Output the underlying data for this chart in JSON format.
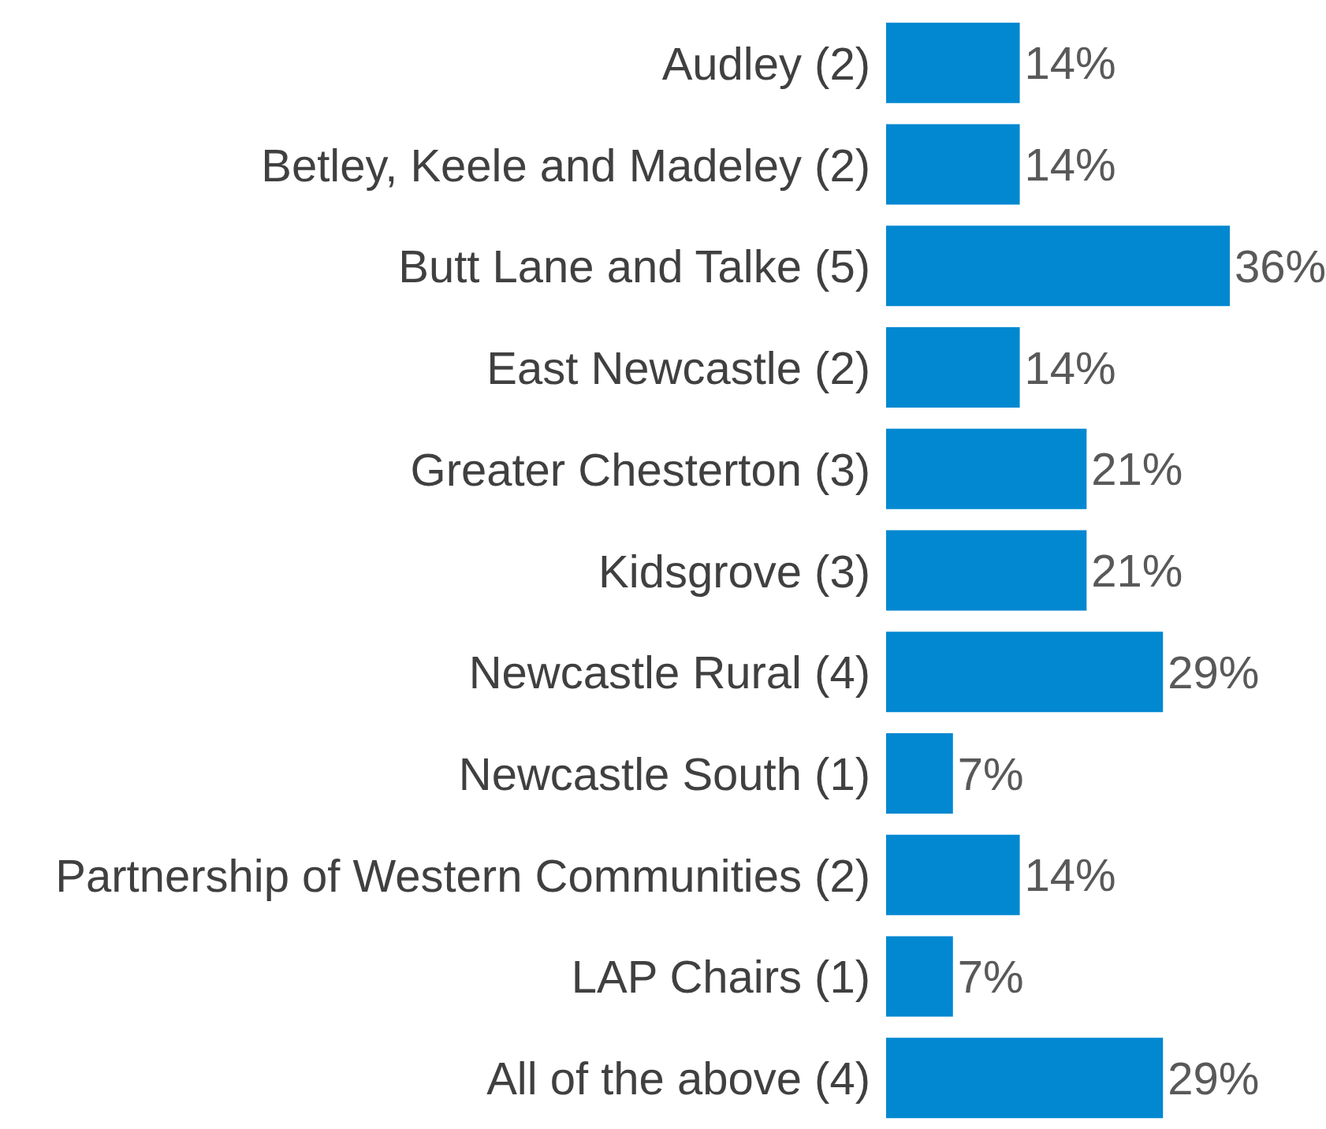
{
  "chart_data": {
    "type": "bar",
    "orientation": "horizontal",
    "categories": [
      "Audley (2)",
      "Betley, Keele and Madeley (2)",
      "Butt Lane and Talke (5)",
      "East Newcastle (2)",
      "Greater Chesterton (3)",
      "Kidsgrove (3)",
      "Newcastle Rural (4)",
      "Newcastle South (1)",
      "Partnership of Western Communities (2)",
      "LAP Chairs (1)",
      "All of the above (4)"
    ],
    "values": [
      14,
      14,
      36,
      14,
      21,
      21,
      29,
      7,
      14,
      7,
      29
    ],
    "value_labels": [
      "14%",
      "14%",
      "36%",
      "14%",
      "21%",
      "21%",
      "29%",
      "7%",
      "14%",
      "7%",
      "29%"
    ],
    "color": "#0288d1",
    "grid": false,
    "legend": false
  }
}
